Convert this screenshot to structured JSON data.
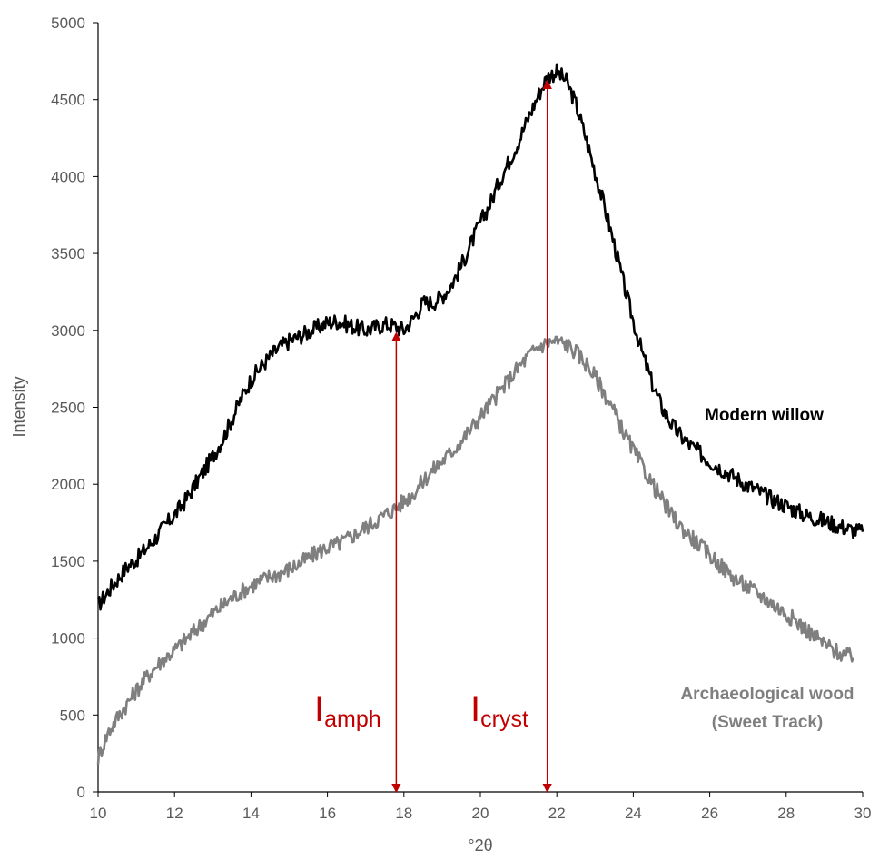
{
  "chart_data": {
    "type": "line",
    "title": "",
    "xlabel": "°2θ",
    "ylabel": "Intensity",
    "xlim": [
      10,
      30
    ],
    "ylim": [
      0,
      5000
    ],
    "xticks": [
      10,
      12,
      14,
      16,
      18,
      20,
      22,
      24,
      26,
      28,
      30
    ],
    "yticks": [
      0,
      500,
      1000,
      1500,
      2000,
      2500,
      3000,
      3500,
      4000,
      4500,
      5000
    ],
    "grid": false,
    "series": [
      {
        "name": "Modern willow",
        "color": "#000000",
        "x": [
          10,
          10.25,
          10.5,
          10.75,
          11,
          11.25,
          11.5,
          11.75,
          12,
          12.25,
          12.5,
          12.75,
          13,
          13.25,
          13.5,
          13.75,
          14,
          14.25,
          14.5,
          14.75,
          15,
          15.25,
          15.5,
          15.75,
          16,
          16.25,
          16.5,
          16.75,
          17,
          17.25,
          17.5,
          17.75,
          18,
          18.25,
          18.5,
          18.75,
          19,
          19.25,
          19.5,
          19.75,
          20,
          20.25,
          20.5,
          20.75,
          21,
          21.25,
          21.5,
          21.75,
          22,
          22.25,
          22.5,
          22.75,
          23,
          23.25,
          23.5,
          23.75,
          24,
          24.25,
          24.5,
          24.75,
          25,
          25.25,
          25.5,
          25.75,
          26,
          26.25,
          26.5,
          26.75,
          27,
          27.25,
          27.5,
          27.75,
          28,
          28.25,
          28.5,
          28.75,
          29,
          29.25,
          29.5,
          29.75,
          30
        ],
        "y": [
          1210,
          1300,
          1380,
          1460,
          1510,
          1580,
          1650,
          1730,
          1800,
          1880,
          1980,
          2080,
          2180,
          2290,
          2420,
          2560,
          2680,
          2760,
          2830,
          2890,
          2930,
          2960,
          2990,
          3020,
          3050,
          3060,
          3040,
          3020,
          3000,
          3020,
          3040,
          3030,
          3000,
          3080,
          3180,
          3180,
          3220,
          3300,
          3420,
          3560,
          3700,
          3820,
          3970,
          4100,
          4230,
          4380,
          4520,
          4650,
          4680,
          4620,
          4470,
          4260,
          4030,
          3800,
          3560,
          3300,
          3060,
          2840,
          2650,
          2500,
          2390,
          2310,
          2250,
          2200,
          2150,
          2110,
          2070,
          2030,
          1990,
          1960,
          1920,
          1890,
          1860,
          1830,
          1800,
          1780,
          1760,
          1740,
          1720,
          1700,
          1690
        ]
      },
      {
        "name": "Archaeological wood (Sweet Track)",
        "color": "#7f7f7f",
        "x": [
          10,
          10.25,
          10.5,
          10.75,
          11,
          11.25,
          11.5,
          11.75,
          12,
          12.25,
          12.5,
          12.75,
          13,
          13.25,
          13.5,
          13.75,
          14,
          14.25,
          14.5,
          14.75,
          15,
          15.25,
          15.5,
          15.75,
          16,
          16.25,
          16.5,
          16.75,
          17,
          17.25,
          17.5,
          17.75,
          18,
          18.25,
          18.5,
          18.75,
          19,
          19.25,
          19.5,
          19.75,
          20,
          20.25,
          20.5,
          20.75,
          21,
          21.25,
          21.5,
          21.75,
          22,
          22.25,
          22.5,
          22.75,
          23,
          23.25,
          23.5,
          23.75,
          24,
          24.25,
          24.5,
          24.75,
          25,
          25.25,
          25.5,
          25.75,
          26,
          26.25,
          26.5,
          26.75,
          27,
          27.25,
          27.5,
          27.75,
          28,
          28.25,
          28.5,
          28.75,
          29,
          29.25,
          29.5,
          29.75
        ],
        "y": [
          220,
          380,
          480,
          570,
          660,
          740,
          810,
          870,
          920,
          980,
          1040,
          1100,
          1160,
          1210,
          1260,
          1300,
          1340,
          1370,
          1400,
          1420,
          1450,
          1480,
          1520,
          1560,
          1590,
          1610,
          1640,
          1680,
          1720,
          1760,
          1800,
          1840,
          1890,
          1940,
          2020,
          2090,
          2150,
          2210,
          2280,
          2360,
          2440,
          2520,
          2600,
          2680,
          2760,
          2830,
          2890,
          2920,
          2930,
          2910,
          2860,
          2790,
          2700,
          2590,
          2470,
          2340,
          2220,
          2110,
          2000,
          1900,
          1800,
          1720,
          1660,
          1600,
          1540,
          1480,
          1420,
          1370,
          1330,
          1290,
          1250,
          1200,
          1160,
          1110,
          1060,
          1010,
          960,
          920,
          890,
          870
        ]
      }
    ],
    "annotations": {
      "amph": {
        "letter": "I",
        "subscript": "amph",
        "x": 17.8,
        "y_from": 0,
        "y_to": 2960
      },
      "cryst": {
        "letter": "I",
        "subscript": "cryst",
        "x": 21.75,
        "y_from": 0,
        "y_to": 4600
      }
    },
    "series_labels": {
      "modern": "Modern willow",
      "archaeo_line1": "Archaeological wood",
      "archaeo_line2": "(Sweet Track)"
    }
  }
}
